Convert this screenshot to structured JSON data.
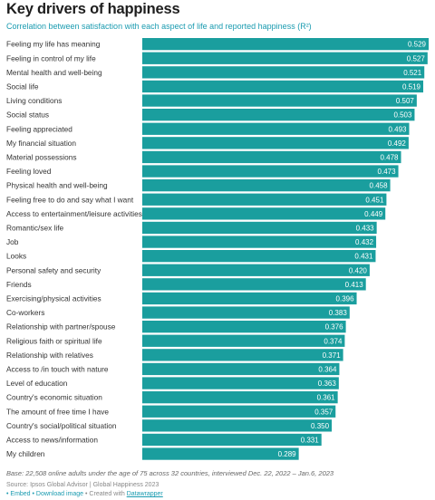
{
  "title": "Key drivers of happiness",
  "subtitle": "Correlation between satisfaction with each aspect of life and reported happiness (R²)",
  "bar_color": "#1a9e9e",
  "chart_data": {
    "type": "bar",
    "orientation": "horizontal",
    "categories": [
      "Feeling my life has meaning",
      "Feeling in control of my life",
      "Mental health and well-being",
      "Social life",
      "Living conditions",
      "Social status",
      "Feeling appreciated",
      "My financial situation",
      "Material possessions",
      "Feeling loved",
      "Physical health and well-being",
      "Feeling free to do and say what I want",
      "Access to entertainment/leisure activities",
      "Romantic/sex life",
      "Job",
      "Looks",
      "Personal safety and security",
      "Friends",
      "Exercising/physical activities",
      "Co-workers",
      "Relationship with partner/spouse",
      "Religious faith or spiritual life",
      "Relationship with relatives",
      "Access to /in touch with nature",
      "Level of education",
      "Country's economic situation",
      "The amount of free time I have",
      "Country's social/political situation",
      "Access to news/information",
      "My children"
    ],
    "values": [
      0.529,
      0.527,
      0.521,
      0.519,
      0.507,
      0.503,
      0.493,
      0.492,
      0.478,
      0.473,
      0.458,
      0.451,
      0.449,
      0.433,
      0.432,
      0.431,
      0.42,
      0.413,
      0.396,
      0.383,
      0.376,
      0.374,
      0.371,
      0.364,
      0.363,
      0.361,
      0.357,
      0.35,
      0.331,
      0.289
    ],
    "value_labels": [
      "0.529",
      "0.527",
      "0.521",
      "0.519",
      "0.507",
      "0.503",
      "0.493",
      "0.492",
      "0.478",
      "0.473",
      "0.458",
      "0.451",
      "0.449",
      "0.433",
      "0.432",
      "0.431",
      "0.420",
      "0.413",
      "0.396",
      "0.383",
      "0.376",
      "0.374",
      "0.371",
      "0.364",
      "0.363",
      "0.361",
      "0.357",
      "0.350",
      "0.331",
      "0.289"
    ],
    "xlim": [
      0,
      0.529
    ],
    "grid": false,
    "legend": "none"
  },
  "note": "Base: 22,508 online adults under the age of 75 across 32 countries, interviewed Dec. 22, 2022 – Jan.6, 2023",
  "source": "Source: Ipsos Global Advisor | Global Happiness 2023",
  "footer": {
    "embed": "• Embed",
    "download": "• Download image",
    "created": "• Created with",
    "tool": "Datawrapper"
  }
}
